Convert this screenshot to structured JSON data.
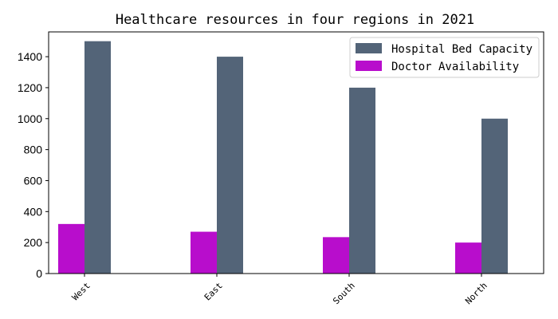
{
  "chart_data": {
    "type": "bar",
    "title": "Healthcare resources in four regions in 2021",
    "xlabel": "",
    "ylabel": "",
    "categories": [
      "West",
      "East",
      "South",
      "North"
    ],
    "series": [
      {
        "name": "Doctor Availability",
        "values": [
          320,
          270,
          235,
          200
        ],
        "color": "#b80dcc"
      },
      {
        "name": "Hospital Bed Capacity",
        "values": [
          1500,
          1400,
          1200,
          1000
        ],
        "color": "#536478"
      }
    ],
    "legend_order": [
      "Hospital Bed Capacity",
      "Doctor Availability"
    ],
    "ylim": [
      0,
      1560
    ],
    "yticks": [
      0,
      200,
      400,
      600,
      800,
      1000,
      1200,
      1400
    ],
    "grid": false,
    "legend_position": "upper-right"
  }
}
